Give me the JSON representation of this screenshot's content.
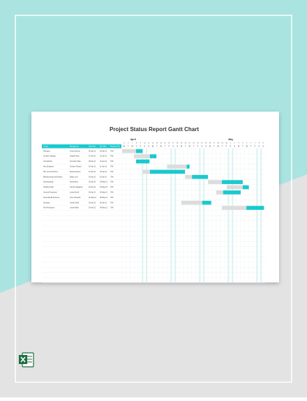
{
  "document": {
    "title": "Project Status Report Gantt Chart",
    "header": [
      "Activity",
      "Managed by",
      "Start Date",
      "End Date",
      "Progress (%)"
    ],
    "months": [
      "April",
      "May"
    ],
    "days": [
      "5",
      "6",
      "7",
      "8",
      "9",
      "10",
      "11",
      "12",
      "13",
      "14",
      "15",
      "16",
      "17",
      "18",
      "19",
      "20",
      "21",
      "22",
      "23",
      "24",
      "25",
      "26",
      "27",
      "28",
      "29",
      "30",
      "1",
      "2",
      "3",
      "4",
      "5",
      "6",
      "7",
      "8",
      "9"
    ],
    "weekdays": [
      "M",
      "T",
      "W",
      "T",
      "F",
      "S",
      "S",
      "M",
      "T",
      "W",
      "T",
      "F",
      "S",
      "S",
      "M",
      "T",
      "W",
      "T",
      "F",
      "S",
      "S",
      "M",
      "T",
      "W",
      "T",
      "F",
      "S",
      "S",
      "M",
      "T",
      "W",
      "T",
      "F",
      "S",
      "S"
    ],
    "tasks": [
      {
        "activity": "Research",
        "manager": "Cedric Meritus",
        "start": "05-Apr-21",
        "end": "09-Apr-21",
        "progress": "70%",
        "planned": [
          0,
          3.4
        ],
        "actual": [
          3.4,
          5
        ]
      },
      {
        "activity": "Creative Strategy",
        "manager": "Abigail Fisher",
        "start": "07-Apr-21",
        "end": "13-Apr-21",
        "progress": "70%",
        "planned": [
          2.9,
          6.8
        ],
        "actual": [
          6.8,
          8.4
        ]
      },
      {
        "activity": "Consultation",
        "manager": "Annmarie Sabe",
        "start": "08-Apr-21",
        "end": "11-Apr-21",
        "progress": "70%",
        "planned": null,
        "actual": [
          3.4,
          6.7
        ]
      },
      {
        "activity": "Hire Designers",
        "manager": "Christen Pritoud",
        "start": "16-Apr-21",
        "end": "21-Apr-21",
        "progress": "70%",
        "planned": [
          11,
          15.8
        ],
        "actual": [
          15.8,
          16.5
        ]
      },
      {
        "activity": "Hire Content Writers",
        "manager": "Royal Ayrtanos",
        "start": "10-Apr-21",
        "end": "20-Apr-21",
        "progress": "70%",
        "planned": [
          5,
          6.8
        ],
        "actual": [
          6.8,
          15.4
        ]
      },
      {
        "activity": "Brainstorming and Ideation",
        "manager": "Edgar Lord",
        "start": "20-Apr-21",
        "end": "25-Apr-21",
        "progress": "70%",
        "planned": [
          15.4,
          17.1
        ],
        "actual": [
          17.1,
          21
        ]
      },
      {
        "activity": "Storyboarding",
        "manager": "Alyssa Bury",
        "start": "25-Apr-21",
        "end": "03-May-21",
        "progress": "70%",
        "planned": [
          21,
          24.4
        ],
        "actual": [
          24.4,
          29.5
        ]
      },
      {
        "activity": "Finalizing Plan",
        "manager": "Garrett Heggarder",
        "start": "29-Apr-21",
        "end": "04-May-21",
        "progress": "70%",
        "planned": [
          25.6,
          29.5
        ],
        "actual": [
          29.5,
          31
        ]
      },
      {
        "activity": "Content Production",
        "manager": "Lesley Birrell",
        "start": "28-Apr-21",
        "end": "02-May-21",
        "progress": "70%",
        "planned": [
          23,
          24.7
        ],
        "actual": [
          24.7,
          29
        ]
      },
      {
        "activity": "Social Media Presence",
        "manager": "Jane Schamba",
        "start": "01-May-21",
        "end": "06-May-21",
        "progress": "70%",
        "planned": null,
        "actual": null
      },
      {
        "activity": "Scripting",
        "manager": "Carolin Duffy",
        "start": "19-Apr-21",
        "end": "26-Apr-21",
        "progress": "70%",
        "planned": [
          14.5,
          19.6
        ],
        "actual": [
          19.6,
          21.8
        ]
      },
      {
        "activity": "Post Production",
        "manager": "Joseph Mick",
        "start": "30-Apr-21",
        "end": "09-May-21",
        "progress": "70%",
        "planned": [
          24.4,
          30.4
        ],
        "actual": [
          30.4,
          34.7
        ]
      }
    ]
  }
}
